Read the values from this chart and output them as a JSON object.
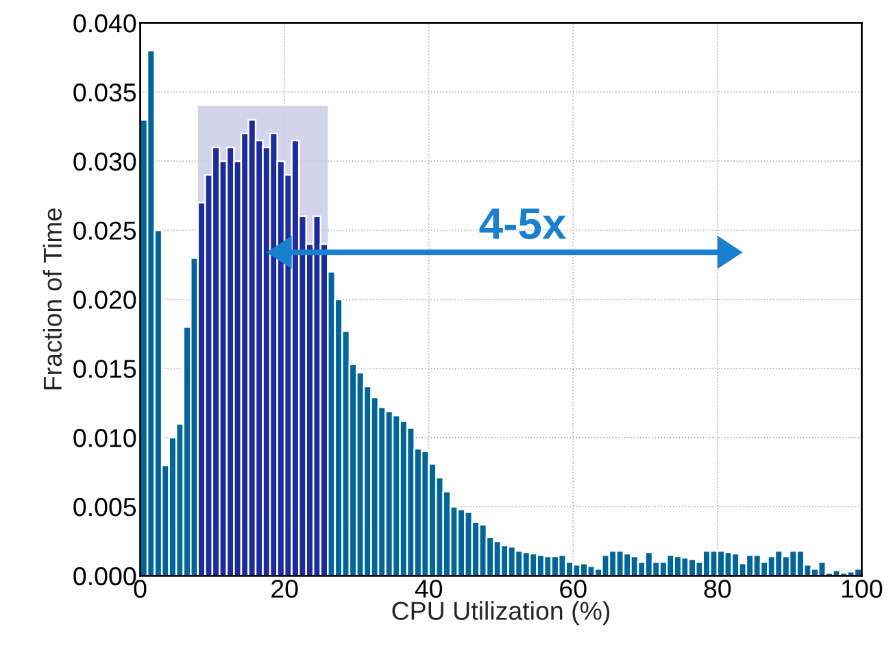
{
  "chart_data": {
    "type": "histogram",
    "xlabel": "CPU Utilization (%)",
    "ylabel": "Fraction of Time",
    "bins": [
      0,
      1,
      2,
      3,
      4,
      5,
      6,
      7,
      8,
      9,
      10,
      11,
      12,
      13,
      14,
      15,
      16,
      17,
      18,
      19,
      20,
      21,
      22,
      23,
      24,
      25,
      26,
      27,
      28,
      29,
      30,
      31,
      32,
      33,
      34,
      35,
      36,
      37,
      38,
      39,
      40,
      41,
      42,
      43,
      44,
      45,
      46,
      47,
      48,
      49,
      50,
      51,
      52,
      53,
      54,
      55,
      56,
      57,
      58,
      59,
      60,
      61,
      62,
      63,
      64,
      65,
      66,
      67,
      68,
      69,
      70,
      71,
      72,
      73,
      74,
      75,
      76,
      77,
      78,
      79,
      80,
      81,
      82,
      83,
      84,
      85,
      86,
      87,
      88,
      89,
      90,
      91,
      92,
      93,
      94,
      95,
      96,
      97,
      98,
      99,
      100
    ],
    "values": [
      0.033,
      0.038,
      0.025,
      0.008,
      0.01,
      0.011,
      0.018,
      0.023,
      0.027,
      0.029,
      0.031,
      0.03,
      0.031,
      0.03,
      0.032,
      0.033,
      0.0315,
      0.031,
      0.032,
      0.03,
      0.029,
      0.0315,
      0.026,
      0.024,
      0.026,
      0.024,
      0.022,
      0.02,
      0.0177,
      0.0153,
      0.0147,
      0.0137,
      0.0129,
      0.0122,
      0.0119,
      0.0116,
      0.0112,
      0.0107,
      0.0092,
      0.009,
      0.0081,
      0.0071,
      0.0061,
      0.005,
      0.0048,
      0.0046,
      0.0039,
      0.0037,
      0.0028,
      0.0025,
      0.0022,
      0.0021,
      0.0018,
      0.0017,
      0.0016,
      0.0015,
      0.0014,
      0.0014,
      0.0015,
      0.001,
      0.0008,
      0.0009,
      0.0007,
      0.0005,
      0.0015,
      0.0018,
      0.0018,
      0.0016,
      0.0014,
      0.001,
      0.0017,
      0.001,
      0.001,
      0.0015,
      0.0014,
      0.0013,
      0.0012,
      0.001,
      0.0018,
      0.0018,
      0.0018,
      0.0017,
      0.0016,
      0.0009,
      0.0015,
      0.0015,
      0.001,
      0.0014,
      0.0018,
      0.0014,
      0.0018,
      0.0018,
      0.0008,
      0.0005,
      0.001,
      0.0002,
      0.0004,
      0.0002,
      0.0003,
      0.0005
    ],
    "colors": [
      "#006699",
      "#006699",
      "#006699",
      "#006699",
      "#006699",
      "#006699",
      "#006699",
      "#006699",
      "#1c2c9c",
      "#1c2c9c",
      "#1c2c9c",
      "#1c2c9c",
      "#1c2c9c",
      "#1c2c9c",
      "#1c2c9c",
      "#1c2c9c",
      "#1c2c9c",
      "#1c2c9c",
      "#1c2c9c",
      "#1c2c9c",
      "#1c2c9c",
      "#1c2c9c",
      "#1c2c9c",
      "#1c2c9c",
      "#1c2c9c",
      "#1c2c9c",
      "#006699",
      "#006699",
      "#006699",
      "#006699",
      "#006699",
      "#006699",
      "#006699",
      "#006699",
      "#006699",
      "#006699",
      "#006699",
      "#006699",
      "#006699",
      "#006699",
      "#006699",
      "#006699",
      "#006699",
      "#006699",
      "#006699",
      "#006699",
      "#006699",
      "#006699",
      "#006699",
      "#006699",
      "#006699",
      "#006699",
      "#006699",
      "#006699",
      "#006699",
      "#006699",
      "#006699",
      "#006699",
      "#006699",
      "#006699",
      "#006699",
      "#006699",
      "#006699",
      "#006699",
      "#006699",
      "#006699",
      "#006699",
      "#006699",
      "#006699",
      "#006699",
      "#006699",
      "#006699",
      "#006699",
      "#006699",
      "#006699",
      "#006699",
      "#006699",
      "#006699",
      "#006699",
      "#006699",
      "#006699",
      "#006699",
      "#006699",
      "#006699",
      "#006699",
      "#006699",
      "#006699",
      "#006699",
      "#006699",
      "#006699",
      "#006699",
      "#006699",
      "#006699",
      "#006699",
      "#006699",
      "#006699",
      "#006699",
      "#006699",
      "#006699",
      "#006699"
    ],
    "xlim": [
      0,
      100
    ],
    "xticks": [
      0,
      20,
      40,
      60,
      80,
      100
    ],
    "ylim": [
      0,
      0.04
    ],
    "yticks": [
      {
        "value": 0,
        "label": "0.000"
      },
      {
        "value": 0.005,
        "label": "0.005"
      },
      {
        "value": 0.01,
        "label": "0.010"
      },
      {
        "value": 0.015,
        "label": "0.015"
      },
      {
        "value": 0.02,
        "label": "0.020"
      },
      {
        "value": 0.025,
        "label": "0.025"
      },
      {
        "value": 0.03,
        "label": "0.030"
      },
      {
        "value": 0.035,
        "label": "0.035"
      },
      {
        "value": 0.04,
        "label": "0.040"
      }
    ],
    "bands": [
      {
        "axis": "x",
        "from": 8,
        "to": 26,
        "color": "#c8c8e6"
      }
    ],
    "annotations": [
      "4-5x"
    ],
    "grid": true
  }
}
